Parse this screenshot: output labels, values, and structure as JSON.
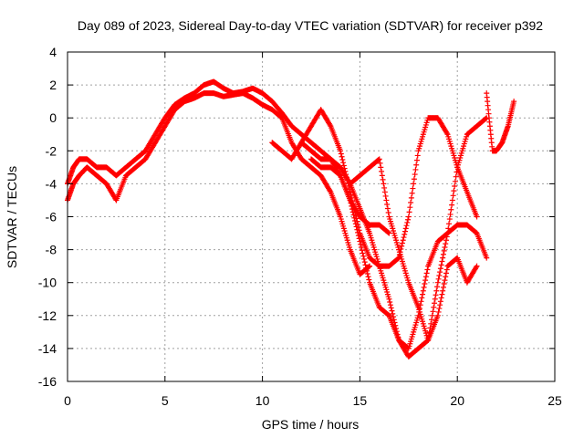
{
  "chart_data": {
    "type": "scatter",
    "title": "Day 089 of 2023, Sidereal Day-to-day VTEC variation (SDTVAR) for receiver p392",
    "xlabel": "GPS time / hours",
    "ylabel": "SDTVAR / TECUs",
    "xlim": [
      0,
      25
    ],
    "ylim": [
      -16,
      4
    ],
    "xticks": [
      0,
      5,
      10,
      15,
      20,
      25
    ],
    "yticks": [
      -16,
      -14,
      -12,
      -10,
      -8,
      -6,
      -4,
      -2,
      0,
      2,
      4
    ],
    "xtick_labels": [
      "0",
      "5",
      "10",
      "15",
      "20",
      "25"
    ],
    "ytick_labels": [
      "-16",
      "-14",
      "-12",
      "-10",
      "-8",
      "-6",
      "-4",
      "-2",
      "0",
      "2",
      "4"
    ],
    "grid": true,
    "legend": "none",
    "marker": "plus",
    "color": "#ff0000",
    "series": [
      {
        "x": [
          0.0,
          0.3,
          0.6,
          1.0,
          1.5,
          2.0,
          2.5,
          3.0,
          3.5,
          4.0,
          4.5,
          5.0,
          5.5,
          6.0,
          6.5,
          7.0,
          7.5,
          8.0,
          8.5,
          9.0,
          9.5,
          10.0,
          10.5,
          11.0,
          11.5,
          12.0,
          12.5,
          13.0,
          13.5,
          14.0,
          14.5,
          15.0,
          15.5,
          16.0,
          16.5
        ],
        "y": [
          -4.0,
          -3.0,
          -2.5,
          -2.5,
          -3.0,
          -3.0,
          -3.5,
          -3.0,
          -2.5,
          -2.0,
          -1.0,
          0.0,
          0.8,
          1.2,
          1.5,
          2.0,
          2.2,
          1.8,
          1.5,
          1.6,
          1.8,
          1.5,
          1.0,
          0.3,
          -0.5,
          -1.0,
          -1.5,
          -2.0,
          -2.5,
          -3.5,
          -5.0,
          -6.0,
          -6.5,
          -6.5,
          -7.0
        ]
      },
      {
        "x": [
          0.0,
          0.3,
          0.6,
          1.0,
          1.5,
          2.0,
          2.5,
          3.0,
          3.5,
          4.0,
          4.5,
          5.0,
          5.5,
          6.0,
          6.5,
          7.0,
          7.5,
          8.0,
          8.5,
          9.0,
          9.5,
          10.0,
          10.5,
          11.0,
          11.5,
          12.0,
          12.5,
          13.0,
          13.5,
          14.0,
          14.5,
          15.0,
          15.5
        ],
        "y": [
          -5.0,
          -4.0,
          -3.5,
          -3.0,
          -3.5,
          -4.0,
          -5.0,
          -3.5,
          -3.0,
          -2.5,
          -1.5,
          -0.5,
          0.5,
          1.0,
          1.2,
          1.5,
          1.5,
          1.3,
          1.4,
          1.5,
          1.2,
          0.8,
          0.5,
          0.0,
          -1.5,
          -2.5,
          -3.0,
          -3.5,
          -4.5,
          -6.0,
          -8.0,
          -9.5,
          -9.0
        ]
      },
      {
        "x": [
          10.5,
          11.0,
          11.5,
          12.0,
          12.5,
          13.0,
          13.5,
          14.0,
          14.5,
          15.0,
          15.5,
          16.0,
          16.5,
          17.0,
          17.5,
          18.0,
          18.5,
          19.0,
          19.5,
          20.0,
          20.5,
          21.0
        ],
        "y": [
          -1.5,
          -2.0,
          -2.5,
          -1.5,
          -0.5,
          0.5,
          -0.5,
          -2.0,
          -4.5,
          -7.0,
          -8.5,
          -9.0,
          -9.0,
          -8.5,
          -6.0,
          -2.0,
          0.0,
          0.0,
          -1.0,
          -3.0,
          -4.5,
          -6.0
        ]
      },
      {
        "x": [
          12.0,
          12.5,
          13.0,
          13.5,
          14.0,
          14.5,
          15.0,
          15.5,
          16.0,
          16.5,
          17.0,
          17.5,
          18.0,
          18.5,
          19.0,
          19.5,
          20.0,
          20.5,
          21.0,
          21.5
        ],
        "y": [
          -1.5,
          -2.0,
          -2.5,
          -2.5,
          -3.0,
          -4.0,
          -5.5,
          -7.0,
          -9.0,
          -11.0,
          -13.5,
          -14.0,
          -12.0,
          -9.0,
          -7.5,
          -7.0,
          -6.5,
          -6.5,
          -7.0,
          -8.5
        ]
      },
      {
        "x": [
          12.5,
          13.0,
          13.5,
          14.0,
          14.5,
          15.0,
          15.5,
          16.0,
          16.5,
          17.0,
          17.5,
          18.0,
          18.5,
          19.0,
          19.5,
          20.0,
          20.5,
          21.0,
          21.5
        ],
        "y": [
          -2.5,
          -3.0,
          -3.0,
          -3.5,
          -5.0,
          -7.5,
          -10.0,
          -11.5,
          -12.0,
          -13.5,
          -14.5,
          -14.0,
          -13.5,
          -10.0,
          -7.0,
          -3.0,
          -1.0,
          -0.5,
          0.0
        ]
      },
      {
        "x": [
          14.5,
          15.0,
          15.5,
          16.0,
          16.5,
          17.0,
          17.5,
          18.0,
          18.5,
          19.0,
          19.5,
          20.0,
          20.5,
          21.0
        ],
        "y": [
          -4.0,
          -3.5,
          -3.0,
          -2.5,
          -6.0,
          -8.0,
          -10.0,
          -11.5,
          -13.5,
          -12.0,
          -9.0,
          -8.5,
          -10.0,
          -9.0
        ]
      },
      {
        "x": [
          21.5,
          21.8,
          22.0,
          22.3,
          22.6,
          22.9
        ],
        "y": [
          1.5,
          -2.0,
          -2.0,
          -1.5,
          -0.5,
          1.0
        ]
      }
    ]
  }
}
